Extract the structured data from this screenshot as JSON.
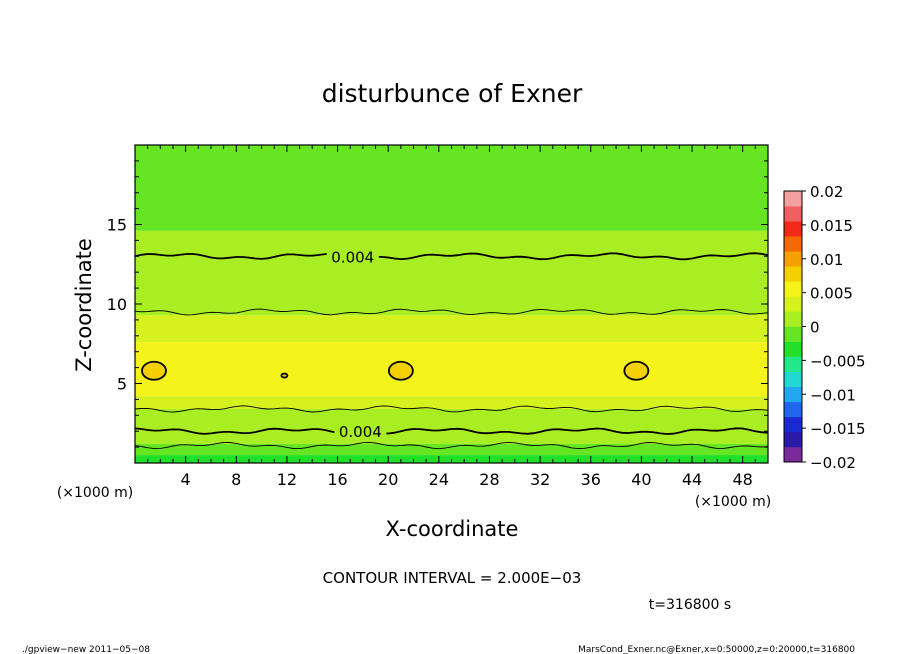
{
  "chart_data": {
    "type": "heatmap",
    "title": "disturbunce of Exner",
    "xlabel": "X-coordinate",
    "ylabel": "Z-coordinate",
    "x_unit": "(×1000 m)",
    "z_unit": "(×1000 m)",
    "xlim": [
      0,
      50
    ],
    "ylim": [
      0,
      20
    ],
    "x_ticks": [
      4,
      8,
      12,
      16,
      20,
      24,
      28,
      32,
      36,
      40,
      44,
      48
    ],
    "y_ticks": [
      5,
      10,
      15
    ],
    "colorbar": {
      "min": -0.02,
      "max": 0.02,
      "tick_values": [
        0.02,
        0.015,
        0.01,
        0.005,
        0,
        -0.005,
        -0.01,
        -0.015,
        -0.02
      ],
      "tick_labels": [
        "0.02",
        "0.015",
        "0.01",
        "0.005",
        "0",
        "−0.005",
        "−0.01",
        "−0.015",
        "−0.02"
      ],
      "colors": [
        "#7a2a9a",
        "#2a1aa8",
        "#1a2ad0",
        "#2266ee",
        "#22a8f0",
        "#22d8d0",
        "#22e88a",
        "#22e02a",
        "#66e622",
        "#a8ee22",
        "#d6f21e",
        "#f4f41a",
        "#f4d000",
        "#f4a000",
        "#f46a00",
        "#f22a1a",
        "#f06060",
        "#f4a0a0"
      ]
    },
    "bands": [
      {
        "z0": 0.0,
        "z1": 0.5,
        "color": "#22e02a"
      },
      {
        "z0": 0.5,
        "z1": 1.2,
        "color": "#66e622"
      },
      {
        "z0": 1.2,
        "z1": 3.4,
        "color": "#a8ee22"
      },
      {
        "z0": 3.4,
        "z1": 4.2,
        "color": "#d6f21e"
      },
      {
        "z0": 4.2,
        "z1": 7.6,
        "color": "#f4f41a"
      },
      {
        "z0": 7.6,
        "z1": 9.3,
        "color": "#d6f21e"
      },
      {
        "z0": 9.3,
        "z1": 14.6,
        "color": "#a8ee22"
      },
      {
        "z0": 14.6,
        "z1": 20.0,
        "color": "#66e622"
      }
    ],
    "contour_levels": [
      {
        "value": 0.004,
        "z": 13.0,
        "label": "0.004",
        "label_x": 17.2
      },
      {
        "value": 0.004,
        "z": 2.0,
        "label": "0.004",
        "label_x": 17.8
      },
      {
        "value": 0.002,
        "z": 9.5,
        "label": ""
      },
      {
        "value": 0.002,
        "z": 3.4,
        "label": ""
      },
      {
        "value": 0.002,
        "z": 1.1,
        "label": ""
      }
    ],
    "closed_contours_0.006": [
      {
        "x": 1.5,
        "z": 5.8
      },
      {
        "x": 21.0,
        "z": 5.8
      },
      {
        "x": 39.6,
        "z": 5.8
      },
      {
        "x": 11.8,
        "z": 5.5
      }
    ]
  },
  "contour_interval_text": "CONTOUR INTERVAL = 2.000E−03",
  "time_text": "t=316800 s",
  "footer_left": "./gpview−new  2011−05−08",
  "footer_right": "MarsCond_Exner.nc@Exner,x=0:50000,z=0:20000,t=316800"
}
